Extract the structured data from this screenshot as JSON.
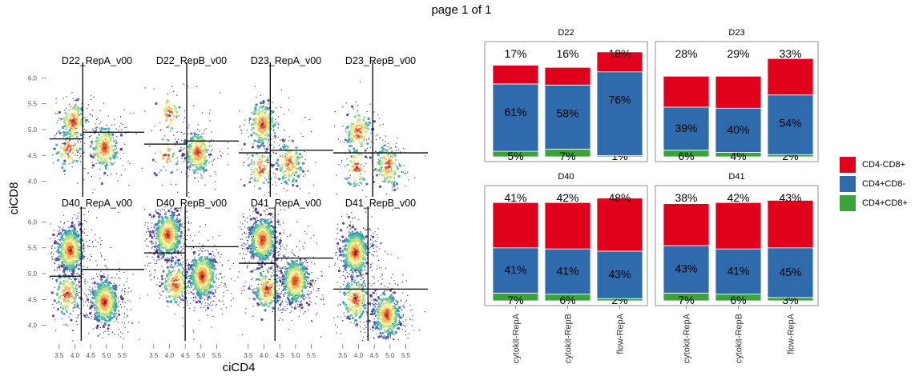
{
  "page": {
    "title": "page 1 of 1"
  },
  "flow_panel": {
    "xlabel": "ciCD4",
    "ylabel": "ciCD8",
    "x_ticks": [
      "3.5",
      "4.0",
      "4.5",
      "5.0",
      "5.5"
    ],
    "y_ticks": [
      "4.0",
      "4.5",
      "5.0",
      "5.5",
      "6.0"
    ]
  },
  "chart_data": [
    {
      "type": "scatter",
      "description_kind": "density scatter facets",
      "xlabel": "ciCD4",
      "ylabel": "ciCD8",
      "xlim": [
        3.2,
        6.2
      ],
      "ylim": [
        3.7,
        6.3
      ],
      "x_ticks": [
        3.5,
        4.0,
        4.5,
        5.0,
        5.5
      ],
      "y_ticks": [
        4.0,
        4.5,
        5.0,
        5.5,
        6.0
      ],
      "facets": [
        {
          "title": "D22_RepA_v00",
          "row": 0,
          "col": 0,
          "gate_x": 4.25,
          "gate_y_left": 4.82,
          "gate_y_right": 4.95,
          "clusters": [
            {
              "x": 3.95,
              "y": 5.15,
              "n": 140
            },
            {
              "x": 3.8,
              "y": 4.62,
              "n": 60
            },
            {
              "x": 4.95,
              "y": 4.65,
              "n": 180
            }
          ]
        },
        {
          "title": "D22_RepB_v00",
          "row": 0,
          "col": 1,
          "gate_x": 4.55,
          "gate_y_left": 4.72,
          "gate_y_right": 4.78,
          "clusters": [
            {
              "x": 4.0,
              "y": 5.3,
              "n": 40
            },
            {
              "x": 3.9,
              "y": 4.5,
              "n": 30
            },
            {
              "x": 4.9,
              "y": 4.55,
              "n": 220
            }
          ]
        },
        {
          "title": "D23_RepA_v00",
          "row": 0,
          "col": 2,
          "gate_x": 4.2,
          "gate_y_left": 4.55,
          "gate_y_right": 4.6,
          "clusters": [
            {
              "x": 3.95,
              "y": 5.1,
              "n": 180
            },
            {
              "x": 3.9,
              "y": 4.25,
              "n": 70
            },
            {
              "x": 4.8,
              "y": 4.35,
              "n": 120
            }
          ]
        },
        {
          "title": "D23_RepB_v00",
          "row": 0,
          "col": 3,
          "gate_x": 4.45,
          "gate_y_left": 4.55,
          "gate_y_right": 4.55,
          "clusters": [
            {
              "x": 4.0,
              "y": 4.95,
              "n": 120
            },
            {
              "x": 3.95,
              "y": 4.25,
              "n": 50
            },
            {
              "x": 4.95,
              "y": 4.3,
              "n": 100
            }
          ]
        },
        {
          "title": "D40_RepA_v00",
          "row": 1,
          "col": 0,
          "gate_x": 4.2,
          "gate_y_left": 4.95,
          "gate_y_right": 5.08,
          "clusters": [
            {
              "x": 3.85,
              "y": 5.45,
              "n": 500
            },
            {
              "x": 3.75,
              "y": 4.6,
              "n": 120
            },
            {
              "x": 4.95,
              "y": 4.45,
              "n": 450
            }
          ]
        },
        {
          "title": "D40_RepB_v00",
          "row": 1,
          "col": 1,
          "gate_x": 4.5,
          "gate_y_left": 5.4,
          "gate_y_right": 5.52,
          "clusters": [
            {
              "x": 3.95,
              "y": 5.75,
              "n": 500
            },
            {
              "x": 4.2,
              "y": 4.8,
              "n": 150
            },
            {
              "x": 5.05,
              "y": 4.95,
              "n": 450
            }
          ]
        },
        {
          "title": "D41_RepA_v00",
          "row": 1,
          "col": 2,
          "gate_x": 4.35,
          "gate_y_left": 5.2,
          "gate_y_right": 5.3,
          "clusters": [
            {
              "x": 3.95,
              "y": 5.65,
              "n": 500
            },
            {
              "x": 4.1,
              "y": 4.7,
              "n": 150
            },
            {
              "x": 5.0,
              "y": 4.85,
              "n": 450
            }
          ]
        },
        {
          "title": "D41_RepB_v00",
          "row": 1,
          "col": 3,
          "gate_x": 4.3,
          "gate_y_left": 4.7,
          "gate_y_right": 4.7,
          "clusters": [
            {
              "x": 3.9,
              "y": 5.4,
              "n": 450
            },
            {
              "x": 3.9,
              "y": 4.5,
              "n": 150
            },
            {
              "x": 4.9,
              "y": 4.2,
              "n": 350
            }
          ]
        }
      ]
    },
    {
      "type": "bar",
      "stacked": true,
      "percent": true,
      "categories": [
        "cytokit-RepA",
        "cytokit-RepB",
        "flow-RepA"
      ],
      "legend_placement": "right",
      "series_names": [
        "CD4-CD8+",
        "CD4+CD8-",
        "CD4+CD8+"
      ],
      "colors": {
        "CD4-CD8+": "#e0001b",
        "CD4+CD8-": "#2f6aac",
        "CD4+CD8+": "#3aa33a"
      },
      "panels": [
        {
          "title": "D22",
          "values": {
            "CD4-CD8+": [
              17,
              16,
              18
            ],
            "CD4+CD8-": [
              61,
              58,
              76
            ],
            "CD4+CD8+": [
              5,
              7,
              1
            ]
          },
          "labels": {
            "CD4-CD8+": [
              "17%",
              "16%",
              "18%"
            ],
            "CD4+CD8-": [
              "61%",
              "58%",
              "76%"
            ],
            "CD4+CD8+": [
              "5%",
              "7%",
              "1%"
            ]
          }
        },
        {
          "title": "D23",
          "values": {
            "CD4-CD8+": [
              28,
              29,
              33
            ],
            "CD4+CD8-": [
              39,
              40,
              54
            ],
            "CD4+CD8+": [
              6,
              4,
              2
            ]
          },
          "labels": {
            "CD4-CD8+": [
              "28%",
              "29%",
              "33%"
            ],
            "CD4+CD8-": [
              "39%",
              "40%",
              "54%"
            ],
            "CD4+CD8+": [
              "6%",
              "4%",
              "2%"
            ]
          }
        },
        {
          "title": "D40",
          "values": {
            "CD4-CD8+": [
              41,
              42,
              48
            ],
            "CD4+CD8-": [
              41,
              41,
              43
            ],
            "CD4+CD8+": [
              7,
              6,
              2
            ]
          },
          "labels": {
            "CD4-CD8+": [
              "41%",
              "42%",
              "48%"
            ],
            "CD4+CD8-": [
              "41%",
              "41%",
              "43%"
            ],
            "CD4+CD8+": [
              "7%",
              "6%",
              "2%"
            ]
          }
        },
        {
          "title": "D41",
          "values": {
            "CD4-CD8+": [
              38,
              42,
              43
            ],
            "CD4+CD8-": [
              43,
              41,
              45
            ],
            "CD4+CD8+": [
              7,
              6,
              3
            ]
          },
          "labels": {
            "CD4-CD8+": [
              "38%",
              "42%",
              "43%"
            ],
            "CD4+CD8-": [
              "43%",
              "41%",
              "45%"
            ],
            "CD4+CD8+": [
              "7%",
              "6%",
              "3%"
            ]
          }
        }
      ]
    }
  ],
  "legend": {
    "items": [
      {
        "label": "CD4-CD8+",
        "color": "#e0001b"
      },
      {
        "label": "CD4+CD8-",
        "color": "#2f6aac"
      },
      {
        "label": "CD4+CD8+",
        "color": "#3aa33a"
      }
    ]
  }
}
